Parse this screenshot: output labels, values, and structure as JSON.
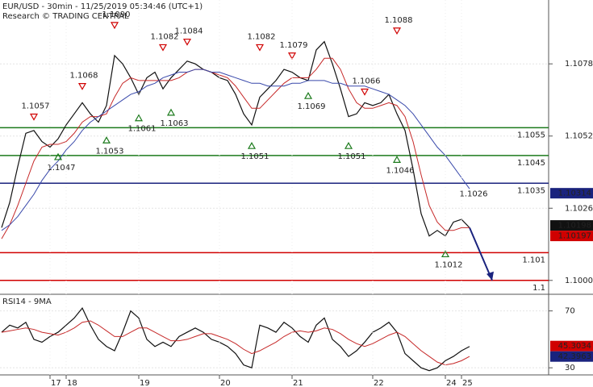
{
  "chart_data": [
    {
      "type": "line",
      "title": "EUR/USD - 30min - 11/25/2019 05:34:46 (UTC+1)",
      "subtitle": "Research © TRADING CENTRAL",
      "categories": [
        null,
        null,
        null,
        null,
        null,
        null,
        "17",
        null,
        "18",
        null,
        null,
        null,
        null,
        null,
        null,
        null,
        null,
        "19",
        null,
        null,
        null,
        null,
        null,
        null,
        null,
        null,
        null,
        "20",
        null,
        null,
        null,
        null,
        null,
        null,
        null,
        null,
        "21",
        null,
        null,
        null,
        null,
        null,
        null,
        null,
        null,
        null,
        "22",
        null,
        null,
        null,
        null,
        null,
        null,
        null,
        null,
        "24",
        null,
        "25",
        null,
        null,
        null,
        null,
        null,
        null,
        null,
        null,
        null,
        null
      ],
      "series": [
        {
          "color": "#111111",
          "values": [
            1.1019,
            1.1028,
            1.1041,
            1.1053,
            1.1054,
            1.105,
            1.1048,
            1.1051,
            1.1056,
            1.106,
            1.1064,
            1.106,
            1.1057,
            1.1063,
            1.1081,
            1.1078,
            1.1073,
            1.1067,
            1.1073,
            1.1075,
            1.1069,
            1.1073,
            1.1076,
            1.1079,
            1.1078,
            1.1076,
            1.1075,
            1.1073,
            1.1072,
            1.1067,
            1.106,
            1.1056,
            1.1066,
            1.1069,
            1.1072,
            1.1076,
            1.1075,
            1.1073,
            1.1072,
            1.1083,
            1.1086,
            1.1078,
            1.1069,
            1.1059,
            1.106,
            1.1064,
            1.1063,
            1.1064,
            1.1067,
            1.106,
            1.1054,
            1.104,
            1.1024,
            1.1016,
            1.1018,
            1.1016,
            1.1021,
            1.1022,
            1.1019,
            null,
            null,
            null,
            null,
            null,
            null,
            null,
            null,
            null
          ]
        },
        {
          "color": "#c62828",
          "values": [
            1.1015,
            1.102,
            1.1027,
            1.1035,
            1.1043,
            1.1048,
            1.1049,
            1.1049,
            1.105,
            1.1053,
            1.1057,
            1.1059,
            1.1059,
            1.106,
            1.1066,
            1.1071,
            1.1073,
            1.1072,
            1.1072,
            1.1072,
            1.1072,
            1.1072,
            1.1073,
            1.1075,
            1.1076,
            1.1076,
            1.1075,
            1.1074,
            1.1073,
            1.107,
            1.1066,
            1.1062,
            1.1062,
            1.1065,
            1.1068,
            1.1071,
            1.1073,
            1.1073,
            1.1073,
            1.1076,
            1.108,
            1.108,
            1.1076,
            1.1069,
            1.1064,
            1.1062,
            1.1062,
            1.1063,
            1.1064,
            1.1063,
            1.1059,
            1.105,
            1.1038,
            1.1027,
            1.1021,
            1.1018,
            1.1018,
            1.1019,
            1.1019,
            null,
            null,
            null,
            null,
            null,
            null,
            null,
            null,
            null
          ]
        },
        {
          "color": "#3949ab",
          "values": [
            1.1018,
            1.102,
            1.1023,
            1.1027,
            1.1031,
            1.1036,
            1.104,
            1.1043,
            1.1047,
            1.105,
            1.1054,
            1.1057,
            1.1059,
            1.1061,
            1.1063,
            1.1065,
            1.1067,
            1.1068,
            1.107,
            1.1071,
            1.1073,
            1.1074,
            1.1075,
            1.1075,
            1.1076,
            1.1076,
            1.1075,
            1.1075,
            1.1074,
            1.1073,
            1.1072,
            1.1071,
            1.1071,
            1.107,
            1.107,
            1.107,
            1.1071,
            1.1071,
            1.1072,
            1.1072,
            1.1072,
            1.1071,
            1.1071,
            1.107,
            1.107,
            1.107,
            1.1069,
            1.1068,
            1.1067,
            1.1065,
            1.1063,
            1.106,
            1.1056,
            1.1052,
            1.1048,
            1.1045,
            1.1041,
            1.1037,
            1.1033,
            null,
            null,
            null,
            null,
            null,
            null,
            null,
            null,
            null
          ]
        }
      ],
      "ylim": [
        1.0995,
        1.1101
      ],
      "yticks": [
        {
          "value": 1.1,
          "label": "1.1000"
        },
        1.1026,
        1.1052,
        1.1078
      ],
      "levels": [
        {
          "value": 1.1055,
          "color": "#1b7a1b"
        },
        {
          "value": 1.1045,
          "color": "#1b7a1b"
        },
        {
          "value": 1.1035,
          "color": "#1a237e"
        },
        {
          "value": 1.101,
          "color": "#d00000"
        },
        {
          "value": 1.1,
          "color": "#d00000"
        }
      ],
      "annotations": [
        {
          "index": 4,
          "value": 1.1057,
          "direction": "down"
        },
        {
          "index": 10,
          "value": 1.1068,
          "direction": "down"
        },
        {
          "index": 14,
          "value": 1.109,
          "label": "1.1090",
          "direction": "down"
        },
        {
          "index": 20,
          "value": 1.1082,
          "direction": "down"
        },
        {
          "index": 23,
          "value": 1.1084,
          "direction": "down"
        },
        {
          "index": 32,
          "value": 1.1082,
          "direction": "down"
        },
        {
          "index": 36,
          "value": 1.1079,
          "direction": "down"
        },
        {
          "index": 45,
          "value": 1.1066,
          "direction": "down"
        },
        {
          "index": 49,
          "value": 1.1088,
          "direction": "down"
        },
        {
          "index": 7,
          "value": 1.1047,
          "direction": "up"
        },
        {
          "index": 13,
          "value": 1.1053,
          "direction": "up"
        },
        {
          "index": 17,
          "value": 1.1061,
          "direction": "up"
        },
        {
          "index": 21,
          "value": 1.1063,
          "direction": "up"
        },
        {
          "index": 31,
          "value": 1.1051,
          "direction": "up"
        },
        {
          "index": 38,
          "value": 1.1069,
          "direction": "up"
        },
        {
          "index": 43,
          "value": 1.1051,
          "direction": "up"
        },
        {
          "index": 49,
          "value": 1.1046,
          "direction": "up"
        },
        {
          "index": 55,
          "value": 1.1012,
          "direction": "up"
        },
        {
          "index": 58,
          "value": 1.1026,
          "direction": "none"
        }
      ],
      "badges": [
        {
          "value": 1.10314,
          "color": "#1a237e"
        },
        {
          "value": 1.10198,
          "color": "#111111"
        },
        {
          "value": 1.10197,
          "color": "#d00000"
        }
      ]
    },
    {
      "type": "line",
      "title": "RSI14 - 9MA",
      "series": [
        {
          "color": "#111111",
          "values": [
            55,
            60,
            58,
            62,
            50,
            48,
            52,
            55,
            60,
            65,
            72,
            60,
            50,
            45,
            42,
            55,
            70,
            65,
            50,
            45,
            48,
            45,
            52,
            55,
            58,
            55,
            50,
            48,
            45,
            40,
            32,
            30,
            60,
            58,
            55,
            62,
            58,
            52,
            48,
            60,
            65,
            50,
            45,
            38,
            42,
            48,
            55,
            58,
            62,
            55,
            40,
            35,
            30,
            28,
            30,
            35,
            38,
            42,
            45,
            null,
            null,
            null,
            null,
            null,
            null,
            null,
            null,
            null
          ]
        },
        {
          "color": "#c62828",
          "values": [
            55,
            56,
            57,
            58,
            57,
            55,
            54,
            53,
            55,
            58,
            62,
            63,
            60,
            56,
            52,
            52,
            55,
            58,
            58,
            55,
            52,
            49,
            49,
            50,
            52,
            54,
            54,
            52,
            50,
            47,
            43,
            40,
            42,
            45,
            48,
            52,
            55,
            56,
            55,
            56,
            58,
            57,
            54,
            50,
            47,
            45,
            47,
            50,
            53,
            55,
            52,
            47,
            42,
            38,
            34,
            32,
            33,
            35,
            38,
            null,
            null,
            null,
            null,
            null,
            null,
            null,
            null,
            null
          ]
        }
      ],
      "ylim": [
        25,
        80
      ],
      "yticks": [
        30,
        70
      ],
      "badges": [
        {
          "value": 45.3034,
          "color": "#d00000"
        },
        {
          "value": 42.3963,
          "color": "#1a237e"
        }
      ]
    }
  ]
}
